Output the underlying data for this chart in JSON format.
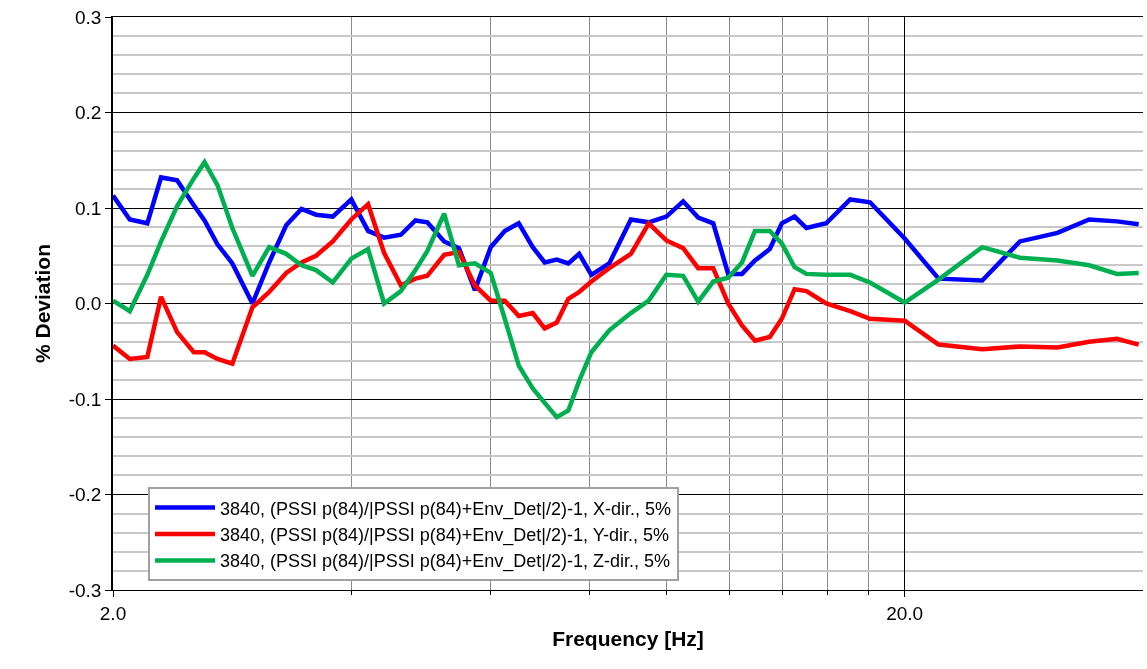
{
  "chart_data": {
    "type": "line",
    "xlabel": "Frequency [Hz]",
    "ylabel": "% Deviation",
    "log": "x",
    "x": [
      2.0,
      2.1,
      2.21,
      2.3,
      2.41,
      2.53,
      2.61,
      2.71,
      2.83,
      3.0,
      3.15,
      3.31,
      3.46,
      3.61,
      3.79,
      4.0,
      4.2,
      4.4,
      4.62,
      4.82,
      4.99,
      5.24,
      5.47,
      5.73,
      6.0,
      6.25,
      6.51,
      6.78,
      7.02,
      7.27,
      7.52,
      7.76,
      8.04,
      8.47,
      9.02,
      9.5,
      10.0,
      10.5,
      10.97,
      11.46,
      11.97,
      12.46,
      12.94,
      13.51,
      13.99,
      14.52,
      15.03,
      15.92,
      17.07,
      18.08,
      20.0,
      22.07,
      25.06,
      27.96,
      31.19,
      34.2,
      37.08,
      39.5
    ],
    "series": [
      {
        "name": "3840, (PSSI p(84)/|PSSI p(84)+Env_Det|/2)-1, X-dir., 5%",
        "color": "#0000ff",
        "values": [
          0.113,
          0.088,
          0.084,
          0.132,
          0.129,
          0.103,
          0.087,
          0.062,
          0.042,
          0.0,
          0.043,
          0.082,
          0.099,
          0.093,
          0.091,
          0.109,
          0.076,
          0.069,
          0.072,
          0.087,
          0.085,
          0.065,
          0.058,
          0.014,
          0.059,
          0.076,
          0.084,
          0.059,
          0.043,
          0.046,
          0.042,
          0.052,
          0.03,
          0.042,
          0.088,
          0.085,
          0.091,
          0.107,
          0.09,
          0.084,
          0.031,
          0.031,
          0.045,
          0.057,
          0.084,
          0.091,
          0.079,
          0.084,
          0.109,
          0.106,
          0.068,
          0.026,
          0.024,
          0.065,
          0.074,
          0.088,
          0.086,
          0.083
        ]
      },
      {
        "name": "3840, (PSSI p(84)/|PSSI p(84)+Env_Det|/2)-1, Y-dir., 5%",
        "color": "#ff0000",
        "values": [
          -0.044,
          -0.058,
          -0.056,
          0.007,
          -0.03,
          -0.051,
          -0.051,
          -0.058,
          -0.063,
          -0.004,
          0.012,
          0.032,
          0.043,
          0.05,
          0.065,
          0.088,
          0.104,
          0.053,
          0.019,
          0.026,
          0.029,
          0.051,
          0.054,
          0.019,
          0.003,
          0.003,
          -0.013,
          -0.01,
          -0.026,
          -0.02,
          0.005,
          0.012,
          0.023,
          0.037,
          0.052,
          0.084,
          0.066,
          0.058,
          0.037,
          0.037,
          0.0,
          -0.023,
          -0.039,
          -0.035,
          -0.016,
          0.015,
          0.013,
          0.0,
          -0.008,
          -0.016,
          -0.018,
          -0.043,
          -0.048,
          -0.045,
          -0.046,
          -0.04,
          -0.037,
          -0.043
        ]
      },
      {
        "name": "3840, (PSSI p(84)/|PSSI p(84)+Env_Det|/2)-1, Z-dir., 5%",
        "color": "#00b050",
        "values": [
          0.003,
          -0.008,
          0.03,
          0.065,
          0.102,
          0.131,
          0.148,
          0.124,
          0.079,
          0.029,
          0.059,
          0.052,
          0.04,
          0.035,
          0.022,
          0.047,
          0.057,
          0.0,
          0.013,
          0.035,
          0.055,
          0.094,
          0.04,
          0.042,
          0.032,
          -0.016,
          -0.065,
          -0.089,
          -0.104,
          -0.119,
          -0.112,
          -0.081,
          -0.051,
          -0.028,
          -0.01,
          0.003,
          0.03,
          0.029,
          0.002,
          0.023,
          0.027,
          0.043,
          0.076,
          0.076,
          0.063,
          0.038,
          0.031,
          0.03,
          0.03,
          0.022,
          0.001,
          0.025,
          0.059,
          0.048,
          0.045,
          0.04,
          0.031,
          0.032
        ]
      }
    ],
    "xlim": [
      2,
      40
    ],
    "xticks": [
      {
        "value": 2,
        "label": "2.0"
      },
      {
        "value": 4,
        "label": null
      },
      {
        "value": 6,
        "label": null
      },
      {
        "value": 8,
        "label": null
      },
      {
        "value": 10,
        "label": null
      },
      {
        "value": 12,
        "label": null
      },
      {
        "value": 14,
        "label": null
      },
      {
        "value": 16,
        "label": null
      },
      {
        "value": 18,
        "label": null
      },
      {
        "value": 20,
        "label": "20.0"
      }
    ],
    "ylim": [
      -0.3,
      0.3
    ],
    "yticks": [
      {
        "value": -0.3,
        "label": "-0.3"
      },
      {
        "value": -0.28,
        "label": null
      },
      {
        "value": -0.26,
        "label": null
      },
      {
        "value": -0.24,
        "label": null
      },
      {
        "value": -0.22,
        "label": null
      },
      {
        "value": -0.2,
        "label": "-0.2"
      },
      {
        "value": -0.18,
        "label": null
      },
      {
        "value": -0.16,
        "label": null
      },
      {
        "value": -0.14,
        "label": null
      },
      {
        "value": -0.12,
        "label": null
      },
      {
        "value": -0.1,
        "label": "-0.1"
      },
      {
        "value": -0.08,
        "label": null
      },
      {
        "value": -0.06,
        "label": null
      },
      {
        "value": -0.04,
        "label": null
      },
      {
        "value": -0.02,
        "label": null
      },
      {
        "value": 0,
        "label": "0.0"
      },
      {
        "value": 0.02,
        "label": null
      },
      {
        "value": 0.04,
        "label": null
      },
      {
        "value": 0.06,
        "label": null
      },
      {
        "value": 0.08,
        "label": null
      },
      {
        "value": 0.1,
        "label": "0.1"
      },
      {
        "value": 0.12,
        "label": null
      },
      {
        "value": 0.14,
        "label": null
      },
      {
        "value": 0.16,
        "label": null
      },
      {
        "value": 0.18,
        "label": null
      },
      {
        "value": 0.2,
        "label": "0.2"
      },
      {
        "value": 0.22,
        "label": null
      },
      {
        "value": 0.24,
        "label": null
      },
      {
        "value": 0.26,
        "label": null
      },
      {
        "value": 0.28,
        "label": null
      },
      {
        "value": 0.3,
        "label": "0.3"
      }
    ],
    "grid": true,
    "legend": "bottom left",
    "marker": "none",
    "line_style": "solid"
  }
}
